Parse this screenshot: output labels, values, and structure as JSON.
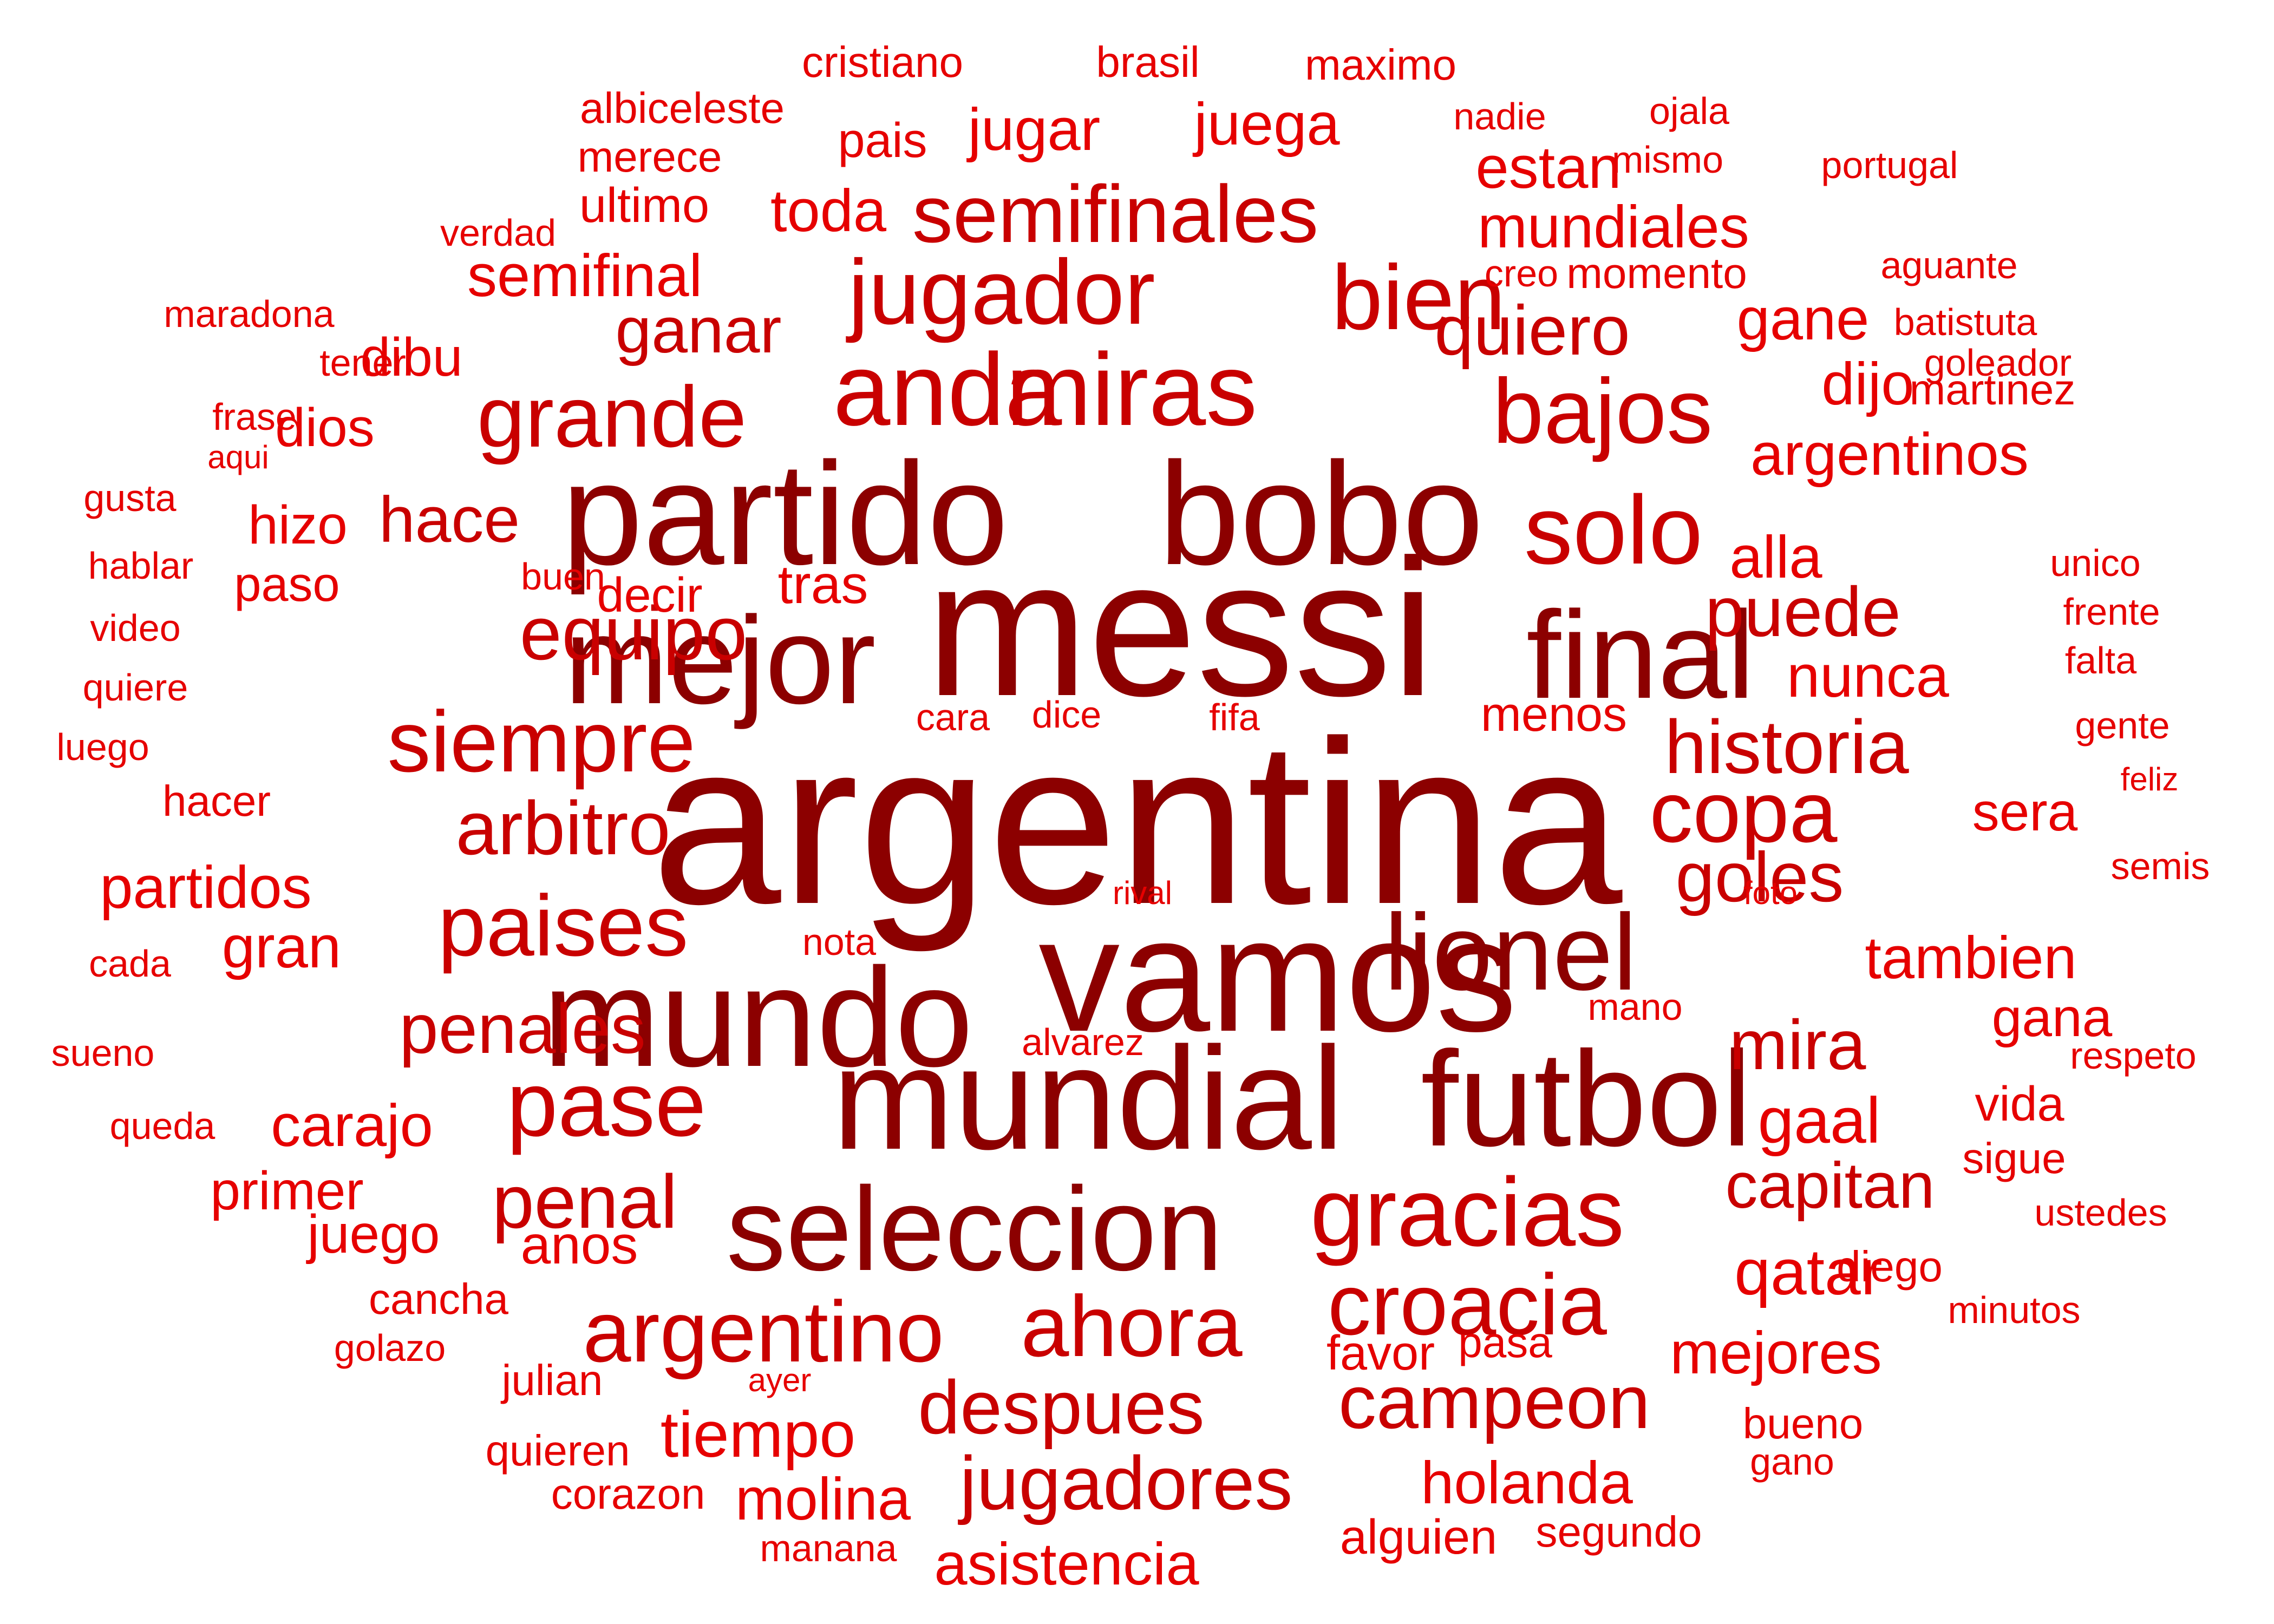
{
  "colors": {
    "dark": "#8c0000",
    "mid": "#c90000",
    "light": "#e60000"
  },
  "words": [
    {
      "text": "argentina",
      "tone": "dark"
    },
    {
      "text": "messi",
      "tone": "dark"
    },
    {
      "text": "vamos",
      "tone": "dark"
    },
    {
      "text": "mundial",
      "tone": "dark"
    },
    {
      "text": "bobo",
      "tone": "dark"
    },
    {
      "text": "partido",
      "tone": "dark"
    },
    {
      "text": "mundo",
      "tone": "dark"
    },
    {
      "text": "mejor",
      "tone": "dark"
    },
    {
      "text": "futbol",
      "tone": "dark"
    },
    {
      "text": "seleccion",
      "tone": "dark"
    },
    {
      "text": "final",
      "tone": "dark"
    },
    {
      "text": "lionel",
      "tone": "dark"
    },
    {
      "text": "miras",
      "tone": "mid"
    },
    {
      "text": "anda",
      "tone": "mid"
    },
    {
      "text": "solo",
      "tone": "mid"
    },
    {
      "text": "gracias",
      "tone": "mid"
    },
    {
      "text": "jugador",
      "tone": "mid"
    },
    {
      "text": "bien",
      "tone": "mid"
    },
    {
      "text": "siempre",
      "tone": "mid"
    },
    {
      "text": "paises",
      "tone": "mid"
    },
    {
      "text": "pase",
      "tone": "mid"
    },
    {
      "text": "copa",
      "tone": "mid"
    },
    {
      "text": "croacia",
      "tone": "mid"
    },
    {
      "text": "ahora",
      "tone": "mid"
    },
    {
      "text": "argentino",
      "tone": "mid"
    },
    {
      "text": "semifinales",
      "tone": "mid"
    },
    {
      "text": "bajos",
      "tone": "mid"
    },
    {
      "text": "grande",
      "tone": "mid"
    },
    {
      "text": "equipo",
      "tone": "mid"
    },
    {
      "text": "historia",
      "tone": "mid"
    },
    {
      "text": "puede",
      "tone": "mid"
    },
    {
      "text": "penal",
      "tone": "mid"
    },
    {
      "text": "penales",
      "tone": "mid"
    },
    {
      "text": "campeon",
      "tone": "mid"
    },
    {
      "text": "jugadores",
      "tone": "mid"
    },
    {
      "text": "despues",
      "tone": "mid"
    },
    {
      "text": "arbitro",
      "tone": "mid"
    },
    {
      "text": "goles",
      "tone": "mid"
    },
    {
      "text": "hace",
      "tone": "mid"
    },
    {
      "text": "mira",
      "tone": "mid"
    },
    {
      "text": "capitan",
      "tone": "mid"
    },
    {
      "text": "quiero",
      "tone": "mid"
    },
    {
      "text": "ganar",
      "tone": "mid"
    },
    {
      "text": "semifinal",
      "tone": "light"
    },
    {
      "text": "mundiales",
      "tone": "light"
    },
    {
      "text": "toda",
      "tone": "light"
    },
    {
      "text": "juega",
      "tone": "light"
    },
    {
      "text": "jugar",
      "tone": "light"
    },
    {
      "text": "estan",
      "tone": "light"
    },
    {
      "text": "alla",
      "tone": "light"
    },
    {
      "text": "nunca",
      "tone": "light"
    },
    {
      "text": "argentinos",
      "tone": "light"
    },
    {
      "text": "tambien",
      "tone": "light"
    },
    {
      "text": "gaal",
      "tone": "light"
    },
    {
      "text": "qatar",
      "tone": "light"
    },
    {
      "text": "mejores",
      "tone": "light"
    },
    {
      "text": "holanda",
      "tone": "light"
    },
    {
      "text": "tiempo",
      "tone": "light"
    },
    {
      "text": "molina",
      "tone": "light"
    },
    {
      "text": "asistencia",
      "tone": "light"
    },
    {
      "text": "carajo",
      "tone": "light"
    },
    {
      "text": "juego",
      "tone": "light"
    },
    {
      "text": "anos",
      "tone": "light"
    },
    {
      "text": "primer",
      "tone": "light"
    },
    {
      "text": "partidos",
      "tone": "light"
    },
    {
      "text": "gran",
      "tone": "light"
    },
    {
      "text": "dibu",
      "tone": "light"
    },
    {
      "text": "dios",
      "tone": "light"
    },
    {
      "text": "hizo",
      "tone": "light"
    },
    {
      "text": "tras",
      "tone": "light"
    },
    {
      "text": "decir",
      "tone": "light"
    },
    {
      "text": "paso",
      "tone": "light"
    },
    {
      "text": "gane",
      "tone": "light"
    },
    {
      "text": "dijo",
      "tone": "light"
    },
    {
      "text": "sera",
      "tone": "light"
    },
    {
      "text": "gana",
      "tone": "light"
    },
    {
      "text": "vida",
      "tone": "light"
    },
    {
      "text": "pais",
      "tone": "light"
    },
    {
      "text": "ultimo",
      "tone": "light"
    },
    {
      "text": "menos",
      "tone": "light"
    },
    {
      "text": "alguien",
      "tone": "light"
    },
    {
      "text": "segundo",
      "tone": "light"
    },
    {
      "text": "favor",
      "tone": "light"
    },
    {
      "text": "pasa",
      "tone": "light"
    },
    {
      "text": "momento",
      "tone": "light"
    },
    {
      "text": "diego",
      "tone": "light"
    },
    {
      "text": "sigue",
      "tone": "light"
    },
    {
      "text": "hacer",
      "tone": "light"
    },
    {
      "text": "cancha",
      "tone": "light"
    },
    {
      "text": "julian",
      "tone": "light"
    },
    {
      "text": "quieren",
      "tone": "light"
    },
    {
      "text": "corazon",
      "tone": "light"
    },
    {
      "text": "manana",
      "tone": "light"
    },
    {
      "text": "bueno",
      "tone": "light"
    },
    {
      "text": "martinez",
      "tone": "light"
    },
    {
      "text": "goleador",
      "tone": "light"
    },
    {
      "text": "merece",
      "tone": "light"
    },
    {
      "text": "albiceleste",
      "tone": "light"
    },
    {
      "text": "cristiano",
      "tone": "light"
    },
    {
      "text": "brasil",
      "tone": "light"
    },
    {
      "text": "maximo",
      "tone": "light"
    },
    {
      "text": "nadie",
      "tone": "light"
    },
    {
      "text": "ojala",
      "tone": "light"
    },
    {
      "text": "mismo",
      "tone": "light"
    },
    {
      "text": "portugal",
      "tone": "light"
    },
    {
      "text": "verdad",
      "tone": "light"
    },
    {
      "text": "creo",
      "tone": "light"
    },
    {
      "text": "aguante",
      "tone": "light"
    },
    {
      "text": "batistuta",
      "tone": "light"
    },
    {
      "text": "maradona",
      "tone": "light"
    },
    {
      "text": "tener",
      "tone": "light"
    },
    {
      "text": "frase",
      "tone": "light"
    },
    {
      "text": "aqui",
      "tone": "light"
    },
    {
      "text": "gusta",
      "tone": "light"
    },
    {
      "text": "hablar",
      "tone": "light"
    },
    {
      "text": "buen",
      "tone": "light"
    },
    {
      "text": "video",
      "tone": "light"
    },
    {
      "text": "quiere",
      "tone": "light"
    },
    {
      "text": "luego",
      "tone": "light"
    },
    {
      "text": "unico",
      "tone": "light"
    },
    {
      "text": "frente",
      "tone": "light"
    },
    {
      "text": "falta",
      "tone": "light"
    },
    {
      "text": "gente",
      "tone": "light"
    },
    {
      "text": "feliz",
      "tone": "light"
    },
    {
      "text": "semis",
      "tone": "light"
    },
    {
      "text": "respeto",
      "tone": "light"
    },
    {
      "text": "ustedes",
      "tone": "light"
    },
    {
      "text": "minutos",
      "tone": "light"
    },
    {
      "text": "gano",
      "tone": "light"
    },
    {
      "text": "cara",
      "tone": "light"
    },
    {
      "text": "dice",
      "tone": "light"
    },
    {
      "text": "fifa",
      "tone": "light"
    },
    {
      "text": "rival",
      "tone": "light"
    },
    {
      "text": "foto",
      "tone": "light"
    },
    {
      "text": "nota",
      "tone": "light"
    },
    {
      "text": "mano",
      "tone": "light"
    },
    {
      "text": "alvarez",
      "tone": "light"
    },
    {
      "text": "cada",
      "tone": "light"
    },
    {
      "text": "sueno",
      "tone": "light"
    },
    {
      "text": "queda",
      "tone": "light"
    },
    {
      "text": "golazo",
      "tone": "light"
    },
    {
      "text": "ayer",
      "tone": "light"
    }
  ]
}
